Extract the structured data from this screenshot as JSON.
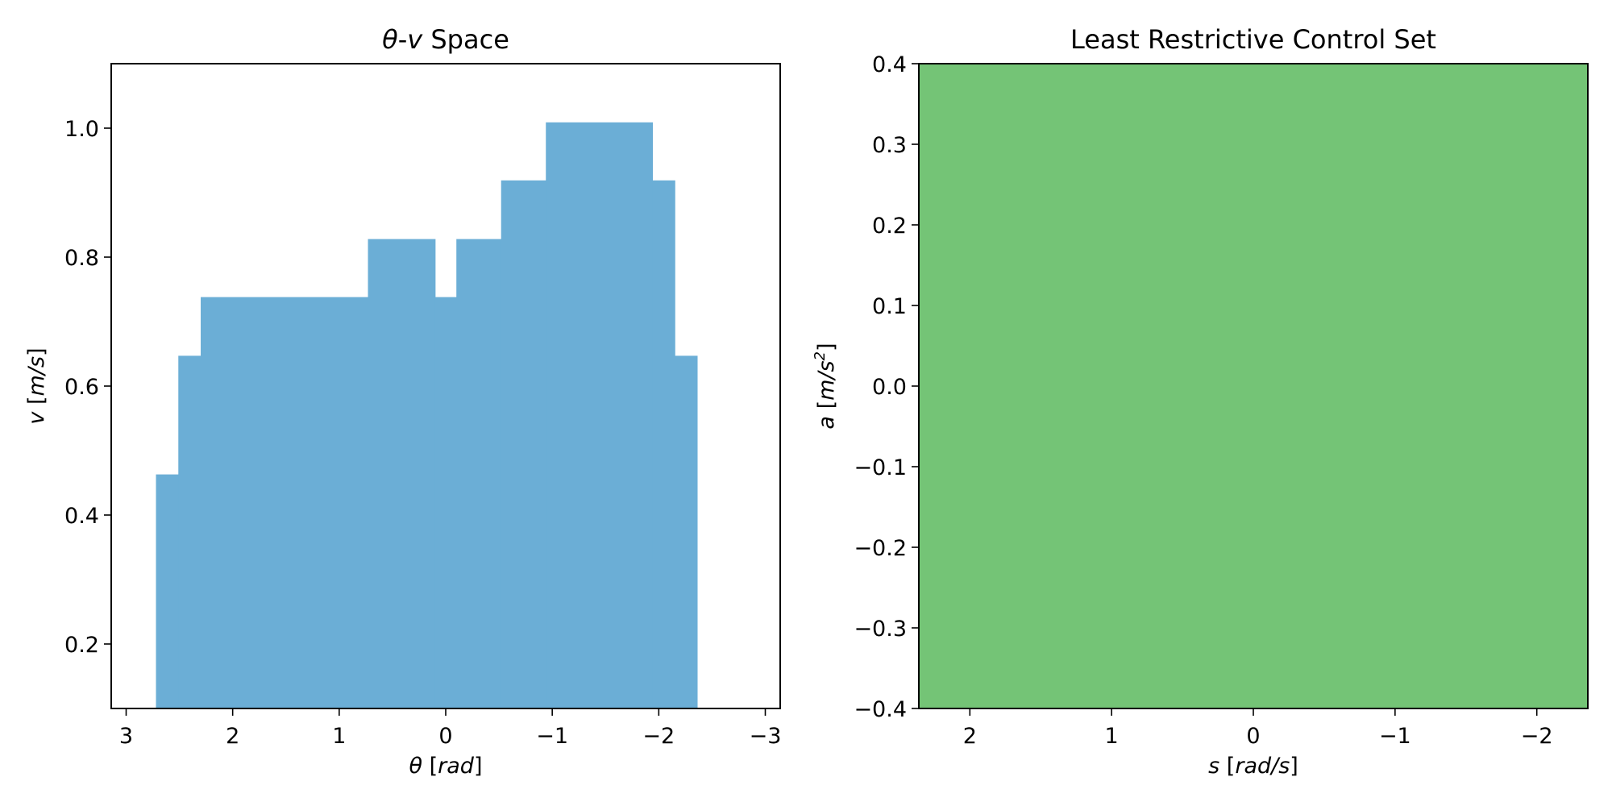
{
  "figure_title": "",
  "colors": {
    "theta_v_fill": "#6baed6",
    "control_set_fill": "#74c476"
  },
  "chart_data": [
    {
      "type": "area",
      "title": "θ-v Space",
      "title_parts": {
        "sym1": "θ",
        "dash": "-",
        "sym2": "v",
        "rest": " Space"
      },
      "xlabel": "θ [rad]",
      "xlabel_parts": {
        "sym": "θ",
        "open": " [",
        "unit": "rad",
        "close": "]"
      },
      "ylabel": "v [m/s]",
      "ylabel_parts": {
        "sym": "v",
        "open": " [",
        "unit": "m/s",
        "close": "]"
      },
      "xlim": [
        3.14,
        -3.14
      ],
      "ylim": [
        0.1,
        1.1
      ],
      "x_inverted": true,
      "grid": false,
      "legend": "none",
      "xticks": [
        3,
        2,
        1,
        0,
        -1,
        -2,
        -3
      ],
      "xtick_labels": [
        "3",
        "2",
        "1",
        "0",
        "−1",
        "−2",
        "−3"
      ],
      "yticks": [
        0.2,
        0.4,
        0.6,
        0.8,
        1.0
      ],
      "ytick_labels": [
        "0.2",
        "0.4",
        "0.6",
        "0.8",
        "1.0"
      ],
      "fill_color": "#6baed6",
      "baseline": 0.1,
      "segments": [
        {
          "x_from": 2.72,
          "x_to": 2.51,
          "v": 0.463
        },
        {
          "x_from": 2.51,
          "x_to": 2.3,
          "v": 0.647
        },
        {
          "x_from": 2.3,
          "x_to": 0.73,
          "v": 0.738
        },
        {
          "x_from": 0.73,
          "x_to": 0.1,
          "v": 0.828
        },
        {
          "x_from": 0.1,
          "x_to": -0.1,
          "v": 0.738
        },
        {
          "x_from": -0.1,
          "x_to": -0.52,
          "v": 0.828
        },
        {
          "x_from": -0.52,
          "x_to": -0.94,
          "v": 0.919
        },
        {
          "x_from": -0.94,
          "x_to": -1.94,
          "v": 1.009
        },
        {
          "x_from": -1.94,
          "x_to": -2.15,
          "v": 0.919
        },
        {
          "x_from": -2.15,
          "x_to": -2.36,
          "v": 0.647
        }
      ]
    },
    {
      "type": "area",
      "title": "Least Restrictive Control Set",
      "xlabel": "s [rad/s]",
      "xlabel_parts": {
        "sym": "s",
        "open": " [",
        "unit": "rad/s",
        "close": "]"
      },
      "ylabel": "a [m/s²]",
      "ylabel_parts": {
        "sym": "a",
        "open": " [",
        "unit": "m/s",
        "sup": "2",
        "close": "]"
      },
      "xlim": [
        2.36,
        -2.36
      ],
      "ylim": [
        -0.4,
        0.4
      ],
      "x_inverted": true,
      "grid": false,
      "legend": "none",
      "xticks": [
        2,
        1,
        0,
        -1,
        -2
      ],
      "xtick_labels": [
        "2",
        "1",
        "0",
        "−1",
        "−2"
      ],
      "yticks": [
        0.4,
        0.3,
        0.2,
        0.1,
        0.0,
        -0.1,
        -0.2,
        -0.3,
        -0.4
      ],
      "ytick_labels": [
        "0.4",
        "0.3",
        "0.2",
        "0.1",
        "0.0",
        "−0.1",
        "−0.2",
        "−0.3",
        "−0.4"
      ],
      "fill_color": "#74c476",
      "region": {
        "s_from": 2.36,
        "s_to": -2.36,
        "a_from": -0.4,
        "a_to": 0.4
      }
    }
  ]
}
